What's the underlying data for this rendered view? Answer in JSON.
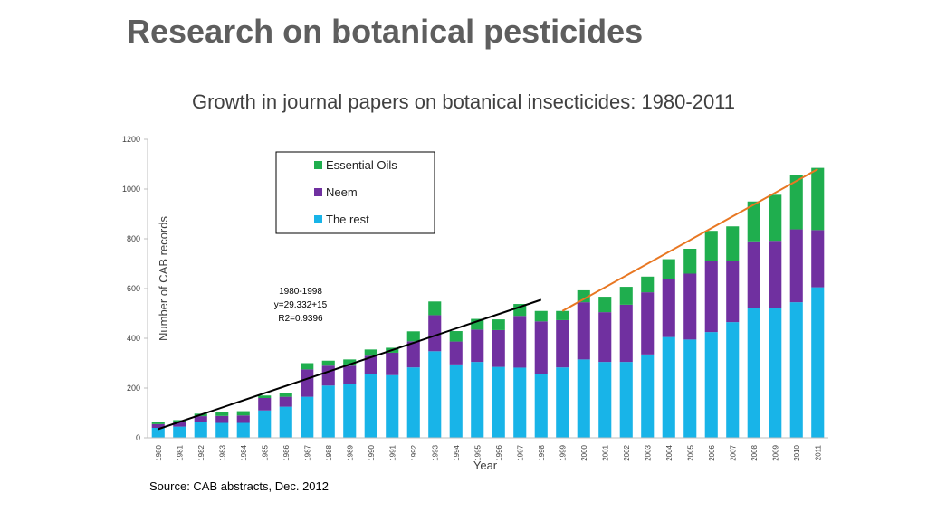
{
  "slide": {
    "title": "Research on botanical pesticides",
    "source": "Source:  CAB abstracts, Dec. 2012"
  },
  "chart_data": {
    "type": "bar",
    "stacked": true,
    "title": "Growth in journal papers on botanical insecticides:  1980-2011",
    "xlabel": "Year",
    "ylabel": "Number of CAB records",
    "ylim": [
      0,
      1200
    ],
    "yticks": [
      0,
      200,
      400,
      600,
      800,
      1000,
      1200
    ],
    "grid": false,
    "legend_position": "top-center",
    "categories": [
      "1980",
      "1981",
      "1982",
      "1983",
      "1984",
      "1985",
      "1986",
      "1987",
      "1988",
      "1989",
      "1990",
      "1991",
      "1992",
      "1993",
      "1994",
      "1995",
      "1996",
      "1997",
      "1998",
      "1999",
      "2000",
      "2001",
      "2002",
      "2003",
      "2004",
      "2005",
      "2006",
      "2007",
      "2008",
      "2009",
      "2010",
      "2011"
    ],
    "series": [
      {
        "name": "The rest",
        "color": "#18b4e8",
        "values": [
          40,
          45,
          62,
          60,
          60,
          110,
          125,
          165,
          210,
          215,
          255,
          252,
          283,
          348,
          295,
          305,
          285,
          282,
          255,
          283,
          315,
          305,
          305,
          335,
          405,
          395,
          425,
          465,
          520,
          522,
          545,
          605
        ]
      },
      {
        "name": "Neem",
        "color": "#7030a0",
        "values": [
          15,
          18,
          25,
          28,
          30,
          50,
          40,
          110,
          80,
          75,
          75,
          90,
          105,
          145,
          92,
          130,
          148,
          208,
          213,
          190,
          230,
          200,
          230,
          250,
          235,
          265,
          285,
          245,
          270,
          270,
          293,
          230
        ]
      },
      {
        "name": "Essential Oils",
        "color": "#1fae4e",
        "values": [
          7,
          8,
          10,
          15,
          17,
          10,
          15,
          25,
          20,
          25,
          25,
          20,
          40,
          55,
          42,
          43,
          43,
          48,
          42,
          37,
          48,
          62,
          72,
          63,
          78,
          100,
          122,
          140,
          160,
          185,
          220,
          250
        ]
      }
    ],
    "legend_order": [
      "Essential Oils",
      "Neem",
      "The rest"
    ],
    "trendlines": [
      {
        "from": "1980",
        "to": "1998",
        "color": "#000000",
        "y_start": 35,
        "y_end": 555
      },
      {
        "from": "1999",
        "to": "2011",
        "color": "#e87722",
        "y_start": 510,
        "y_end": 1080
      }
    ],
    "annotation": [
      "1980-1998",
      "y=29.332+15",
      "R2=0.9396"
    ]
  }
}
